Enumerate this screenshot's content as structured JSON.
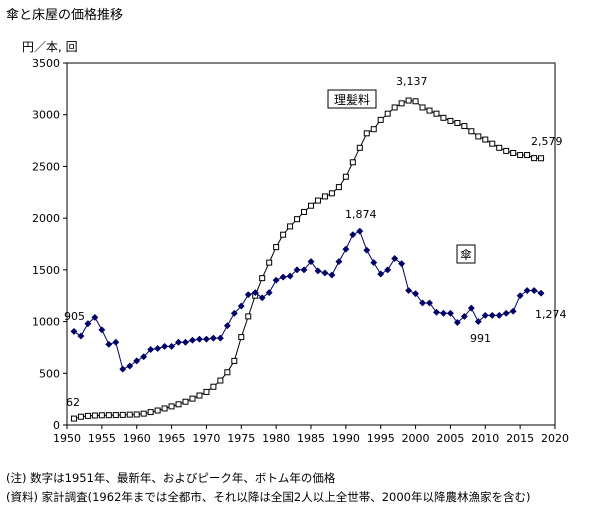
{
  "chart_data": {
    "type": "line",
    "title": "傘と床屋の価格推移",
    "ylabel": "円／本, 回",
    "xlabel": "",
    "xlim": [
      1950,
      2020
    ],
    "ylim": [
      0,
      3500
    ],
    "x_ticks": [
      "1950",
      "1955",
      "1960",
      "1965",
      "1970",
      "1975",
      "1980",
      "1985",
      "1990",
      "1995",
      "2000",
      "2005",
      "2010",
      "2015",
      "2020"
    ],
    "y_ticks": [
      "0",
      "500",
      "1000",
      "1500",
      "2000",
      "2500",
      "3000",
      "3500"
    ],
    "grid": false,
    "series": [
      {
        "name": "理髪料",
        "color": "#000000",
        "marker": "open-square",
        "x": [
          1951,
          1952,
          1953,
          1954,
          1955,
          1956,
          1957,
          1958,
          1959,
          1960,
          1961,
          1962,
          1963,
          1964,
          1965,
          1966,
          1967,
          1968,
          1969,
          1970,
          1971,
          1972,
          1973,
          1974,
          1975,
          1976,
          1977,
          1978,
          1979,
          1980,
          1981,
          1982,
          1983,
          1984,
          1985,
          1986,
          1987,
          1988,
          1989,
          1990,
          1991,
          1992,
          1993,
          1994,
          1995,
          1996,
          1997,
          1998,
          1999,
          2000,
          2001,
          2002,
          2003,
          2004,
          2005,
          2006,
          2007,
          2008,
          2009,
          2010,
          2011,
          2012,
          2013,
          2014,
          2015,
          2016,
          2017,
          2018
        ],
        "values": [
          62,
          80,
          88,
          92,
          94,
          95,
          96,
          98,
          100,
          102,
          110,
          125,
          140,
          160,
          180,
          200,
          225,
          255,
          285,
          320,
          370,
          430,
          510,
          620,
          850,
          1050,
          1250,
          1420,
          1570,
          1720,
          1840,
          1920,
          1990,
          2060,
          2120,
          2170,
          2210,
          2240,
          2300,
          2400,
          2540,
          2680,
          2820,
          2860,
          2950,
          3010,
          3070,
          3110,
          3137,
          3130,
          3070,
          3040,
          3010,
          2970,
          2940,
          2920,
          2890,
          2840,
          2790,
          2760,
          2720,
          2680,
          2650,
          2630,
          2610,
          2610,
          2580,
          2579
        ]
      },
      {
        "name": "傘",
        "color": "#000066",
        "marker": "filled-diamond",
        "x": [
          1951,
          1952,
          1953,
          1954,
          1955,
          1956,
          1957,
          1958,
          1959,
          1960,
          1961,
          1962,
          1963,
          1964,
          1965,
          1966,
          1967,
          1968,
          1969,
          1970,
          1971,
          1972,
          1973,
          1974,
          1975,
          1976,
          1977,
          1978,
          1979,
          1980,
          1981,
          1982,
          1983,
          1984,
          1985,
          1986,
          1987,
          1988,
          1989,
          1990,
          1991,
          1992,
          1993,
          1994,
          1995,
          1996,
          1997,
          1998,
          1999,
          2000,
          2001,
          2002,
          2003,
          2004,
          2005,
          2006,
          2007,
          2008,
          2009,
          2010,
          2011,
          2012,
          2013,
          2014,
          2015,
          2016,
          2017,
          2018
        ],
        "values": [
          905,
          860,
          980,
          1040,
          920,
          780,
          800,
          540,
          570,
          620,
          660,
          730,
          740,
          760,
          760,
          800,
          800,
          820,
          830,
          830,
          840,
          840,
          960,
          1080,
          1150,
          1260,
          1280,
          1230,
          1280,
          1400,
          1430,
          1440,
          1500,
          1500,
          1580,
          1490,
          1470,
          1450,
          1580,
          1700,
          1840,
          1874,
          1690,
          1570,
          1460,
          1500,
          1610,
          1560,
          1300,
          1270,
          1180,
          1180,
          1090,
          1080,
          1080,
          991,
          1050,
          1130,
          1000,
          1060,
          1060,
          1060,
          1080,
          1100,
          1250,
          1300,
          1300,
          1274
        ]
      }
    ],
    "annotations": {
      "barber_label": "理髪料",
      "umbrella_label": "傘",
      "barber_first": "62",
      "barber_peak": "3,137",
      "barber_last": "2,579",
      "umbrella_first": "905",
      "umbrella_peak": "1,874",
      "umbrella_bottom": "991",
      "umbrella_last": "1,274"
    }
  },
  "notes": {
    "note1": "(注) 数字は1951年、最新年、およびピーク年、ボトム年の価格",
    "note2": "(資料) 家計調査(1962年までは全都市、それ以降は全国2人以上全世帯、2000年以降農林漁家を含む)"
  }
}
